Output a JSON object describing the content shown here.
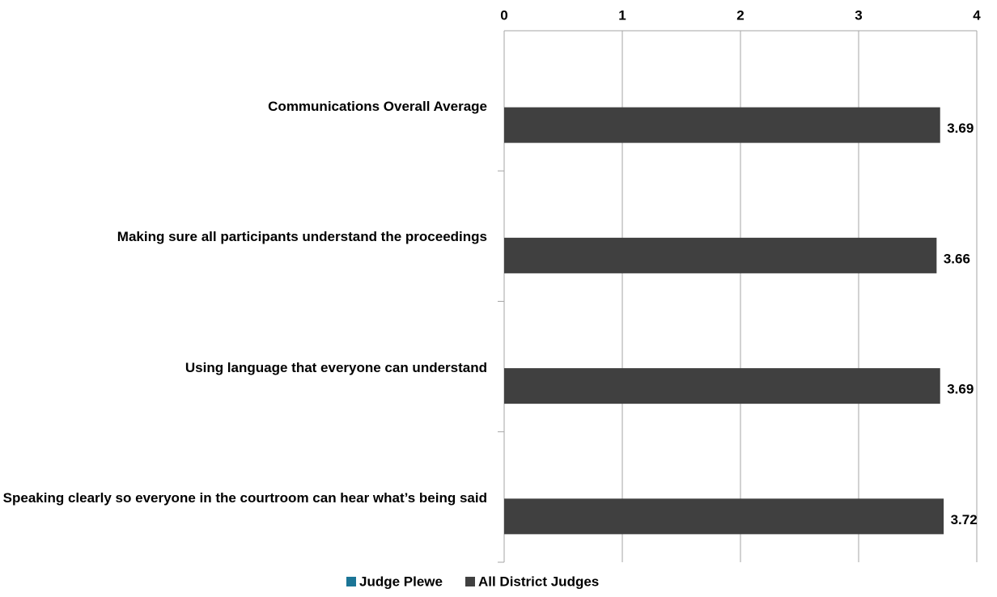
{
  "chart_data": {
    "type": "bar",
    "orientation": "horizontal",
    "categories": [
      "Communications Overall Average",
      "Making sure all participants understand the proceedings",
      "Using language that everyone can understand",
      "Speaking clearly so everyone in the courtroom can hear what’s being said"
    ],
    "series": [
      {
        "name": "Judge Plewe",
        "color": "#1b7596",
        "values": [
          null,
          null,
          null,
          null
        ]
      },
      {
        "name": "All District Judges",
        "color": "#404040",
        "values": [
          3.69,
          3.66,
          3.69,
          3.72
        ]
      }
    ],
    "xlim": [
      0,
      4
    ],
    "xticks": [
      0,
      1,
      2,
      3,
      4
    ],
    "grid": true,
    "legend": "bottom"
  }
}
